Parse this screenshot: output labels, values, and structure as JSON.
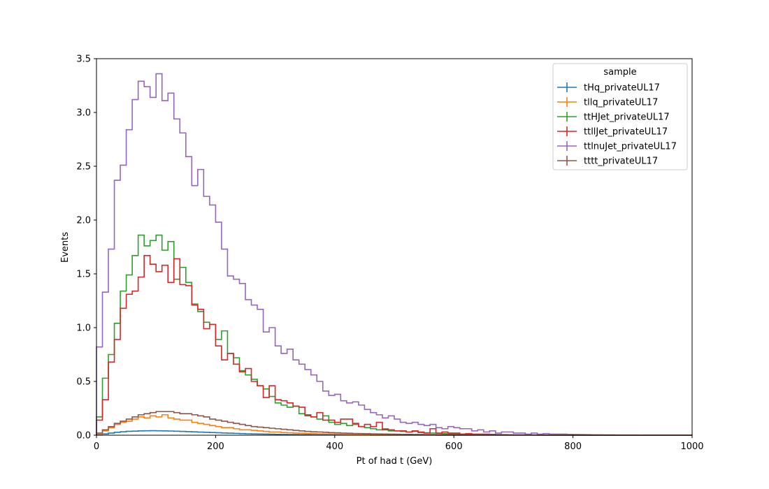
{
  "chart_data": {
    "type": "line",
    "title": "",
    "xlabel": "Pt of had t (GeV)",
    "ylabel": "Events",
    "xlim": [
      0,
      1000
    ],
    "ylim": [
      0,
      3.5
    ],
    "x_ticks": [
      "0",
      "200",
      "400",
      "600",
      "800",
      "1000"
    ],
    "y_ticks": [
      "0.0",
      "0.5",
      "1.0",
      "1.5",
      "2.0",
      "2.5",
      "3.0",
      "3.5"
    ],
    "grid": false,
    "legend": {
      "title": "sample",
      "placement": "top-right"
    },
    "bin_width": 10,
    "series": [
      {
        "name": "tHq_privateUL17",
        "color": "#1f77b4",
        "values": [
          0.003,
          0.012,
          0.02,
          0.027,
          0.032,
          0.036,
          0.038,
          0.04,
          0.041,
          0.042,
          0.041,
          0.04,
          0.039,
          0.037,
          0.035,
          0.033,
          0.031,
          0.029,
          0.027,
          0.025,
          0.023,
          0.021,
          0.019,
          0.017,
          0.015,
          0.013,
          0.012,
          0.011,
          0.01,
          0.009,
          0.008,
          0.007,
          0.006,
          0.006,
          0.005,
          0.005,
          0.004,
          0.004,
          0.003,
          0.003,
          0.003,
          0.002,
          0.002,
          0.002,
          0.002,
          0.002,
          0.001,
          0.001,
          0.001,
          0.001,
          0.001,
          0.001,
          0.001,
          0.001,
          0.001,
          0.001,
          0.001,
          0,
          0,
          0,
          0,
          0,
          0,
          0,
          0,
          0,
          0,
          0,
          0,
          0,
          0,
          0,
          0,
          0,
          0,
          0,
          0,
          0,
          0,
          0,
          0,
          0,
          0,
          0,
          0,
          0,
          0,
          0,
          0,
          0,
          0,
          0,
          0,
          0,
          0,
          0,
          0,
          0,
          0,
          0
        ]
      },
      {
        "name": "tllq_privateUL17",
        "color": "#ff7f0e",
        "values": [
          0.01,
          0.04,
          0.07,
          0.1,
          0.12,
          0.13,
          0.15,
          0.17,
          0.16,
          0.18,
          0.17,
          0.19,
          0.16,
          0.15,
          0.14,
          0.14,
          0.12,
          0.11,
          0.1,
          0.09,
          0.08,
          0.07,
          0.07,
          0.06,
          0.05,
          0.05,
          0.045,
          0.04,
          0.035,
          0.03,
          0.03,
          0.025,
          0.022,
          0.02,
          0.018,
          0.016,
          0.014,
          0.013,
          0.012,
          0.011,
          0.01,
          0.009,
          0.008,
          0.007,
          0.007,
          0.006,
          0.005,
          0.005,
          0.004,
          0.004,
          0.003,
          0.003,
          0.003,
          0.002,
          0.002,
          0.002,
          0.002,
          0.001,
          0.001,
          0.001,
          0.001,
          0.001,
          0.001,
          0.001,
          0.001,
          0.001,
          0.001,
          0,
          0,
          0,
          0,
          0,
          0,
          0,
          0,
          0,
          0,
          0,
          0,
          0,
          0,
          0,
          0,
          0,
          0,
          0,
          0,
          0,
          0,
          0,
          0,
          0,
          0,
          0,
          0,
          0,
          0,
          0,
          0,
          0
        ]
      },
      {
        "name": "ttHJet_privateUL17",
        "color": "#2ca02c",
        "values": [
          0.17,
          0.53,
          0.75,
          1.04,
          1.34,
          1.49,
          1.67,
          1.86,
          1.76,
          1.81,
          1.86,
          1.72,
          1.8,
          1.45,
          1.56,
          1.42,
          1.22,
          1.15,
          1.05,
          1.03,
          0.89,
          0.97,
          0.76,
          0.72,
          0.6,
          0.56,
          0.52,
          0.46,
          0.43,
          0.36,
          0.3,
          0.28,
          0.26,
          0.27,
          0.2,
          0.18,
          0.17,
          0.15,
          0.18,
          0.12,
          0.1,
          0.11,
          0.09,
          0.1,
          0.08,
          0.07,
          0.06,
          0.05,
          0.06,
          0.04,
          0.04,
          0.035,
          0.03,
          0.035,
          0.025,
          0.022,
          0.02,
          0.018,
          0.016,
          0.014,
          0.012,
          0.01,
          0.009,
          0.008,
          0.007,
          0.006,
          0.005,
          0.004,
          0.004,
          0.003,
          0.003,
          0.002,
          0.002,
          0.002,
          0.001,
          0.001,
          0.001,
          0.001,
          0.001,
          0.001,
          0,
          0,
          0,
          0,
          0,
          0,
          0,
          0,
          0,
          0,
          0,
          0,
          0,
          0,
          0,
          0,
          0,
          0,
          0,
          0
        ]
      },
      {
        "name": "ttllJet_privateUL17",
        "color": "#d62728",
        "values": [
          0.14,
          0.33,
          0.68,
          0.89,
          1.18,
          1.31,
          1.34,
          1.47,
          1.67,
          1.59,
          1.52,
          1.58,
          1.42,
          1.64,
          1.4,
          1.39,
          1.21,
          1.17,
          0.99,
          1.03,
          0.83,
          0.7,
          0.76,
          0.66,
          0.59,
          0.62,
          0.5,
          0.46,
          0.35,
          0.46,
          0.33,
          0.32,
          0.3,
          0.27,
          0.26,
          0.19,
          0.17,
          0.21,
          0.14,
          0.14,
          0.12,
          0.15,
          0.15,
          0.11,
          0.08,
          0.1,
          0.08,
          0.12,
          0.05,
          0.05,
          0.04,
          0.04,
          0.03,
          0.04,
          0.03,
          0.02,
          0.06,
          0.02,
          0.03,
          0.02,
          0.02,
          0.01,
          0.015,
          0.01,
          0.01,
          0.01,
          0.008,
          0.006,
          0.005,
          0.004,
          0.003,
          0.003,
          0.002,
          0.002,
          0.001,
          0.001,
          0.001,
          0.001,
          0.001,
          0,
          0,
          0,
          0,
          0,
          0,
          0,
          0,
          0,
          0,
          0,
          0,
          0,
          0,
          0,
          0,
          0,
          0,
          0,
          0,
          0
        ]
      },
      {
        "name": "ttlnuJet_privateUL17",
        "color": "#9467bd",
        "values": [
          0.82,
          1.33,
          1.73,
          2.37,
          2.51,
          2.84,
          3.12,
          3.29,
          3.24,
          3.14,
          3.36,
          3.11,
          3.18,
          2.94,
          2.81,
          2.59,
          2.32,
          2.47,
          2.22,
          2.14,
          1.98,
          1.73,
          1.48,
          1.45,
          1.41,
          1.26,
          1.21,
          1.17,
          0.96,
          1.0,
          0.83,
          0.76,
          0.8,
          0.7,
          0.66,
          0.61,
          0.56,
          0.5,
          0.41,
          0.37,
          0.38,
          0.32,
          0.3,
          0.31,
          0.28,
          0.24,
          0.21,
          0.19,
          0.16,
          0.18,
          0.15,
          0.12,
          0.11,
          0.12,
          0.1,
          0.09,
          0.1,
          0.07,
          0.06,
          0.08,
          0.07,
          0.06,
          0.06,
          0.04,
          0.05,
          0.03,
          0.04,
          0.02,
          0.03,
          0.03,
          0.02,
          0.02,
          0.01,
          0.02,
          0.01,
          0.015,
          0.01,
          0.01,
          0.01,
          0.008,
          0.007,
          0.006,
          0.005,
          0.004,
          0.004,
          0.003,
          0.003,
          0.002,
          0.002,
          0.002,
          0.002,
          0.001,
          0.001,
          0.001,
          0.001,
          0.001,
          0.001,
          0.001,
          0.001,
          0.001
        ]
      },
      {
        "name": "tttt_privateUL17",
        "color": "#8c564b",
        "values": [
          0.02,
          0.05,
          0.08,
          0.11,
          0.13,
          0.15,
          0.17,
          0.19,
          0.2,
          0.21,
          0.22,
          0.22,
          0.22,
          0.21,
          0.2,
          0.2,
          0.19,
          0.18,
          0.17,
          0.15,
          0.14,
          0.13,
          0.12,
          0.11,
          0.1,
          0.09,
          0.08,
          0.075,
          0.07,
          0.065,
          0.06,
          0.055,
          0.05,
          0.045,
          0.04,
          0.035,
          0.032,
          0.03,
          0.027,
          0.024,
          0.022,
          0.02,
          0.018,
          0.016,
          0.015,
          0.014,
          0.013,
          0.012,
          0.011,
          0.01,
          0.009,
          0.008,
          0.008,
          0.007,
          0.007,
          0.006,
          0.006,
          0.005,
          0.005,
          0.005,
          0.004,
          0.004,
          0.004,
          0.003,
          0.003,
          0.003,
          0.003,
          0.003,
          0.002,
          0.002,
          0.002,
          0.002,
          0.002,
          0.002,
          0.002,
          0.002,
          0.001,
          0.001,
          0.001,
          0.001,
          0.001,
          0.001,
          0.001,
          0.001,
          0.001,
          0.001,
          0.001,
          0.001,
          0.001,
          0.001,
          0.001,
          0.001,
          0.001,
          0.001,
          0.001,
          0.001,
          0.001,
          0.001,
          0.001,
          0.001
        ]
      }
    ]
  }
}
